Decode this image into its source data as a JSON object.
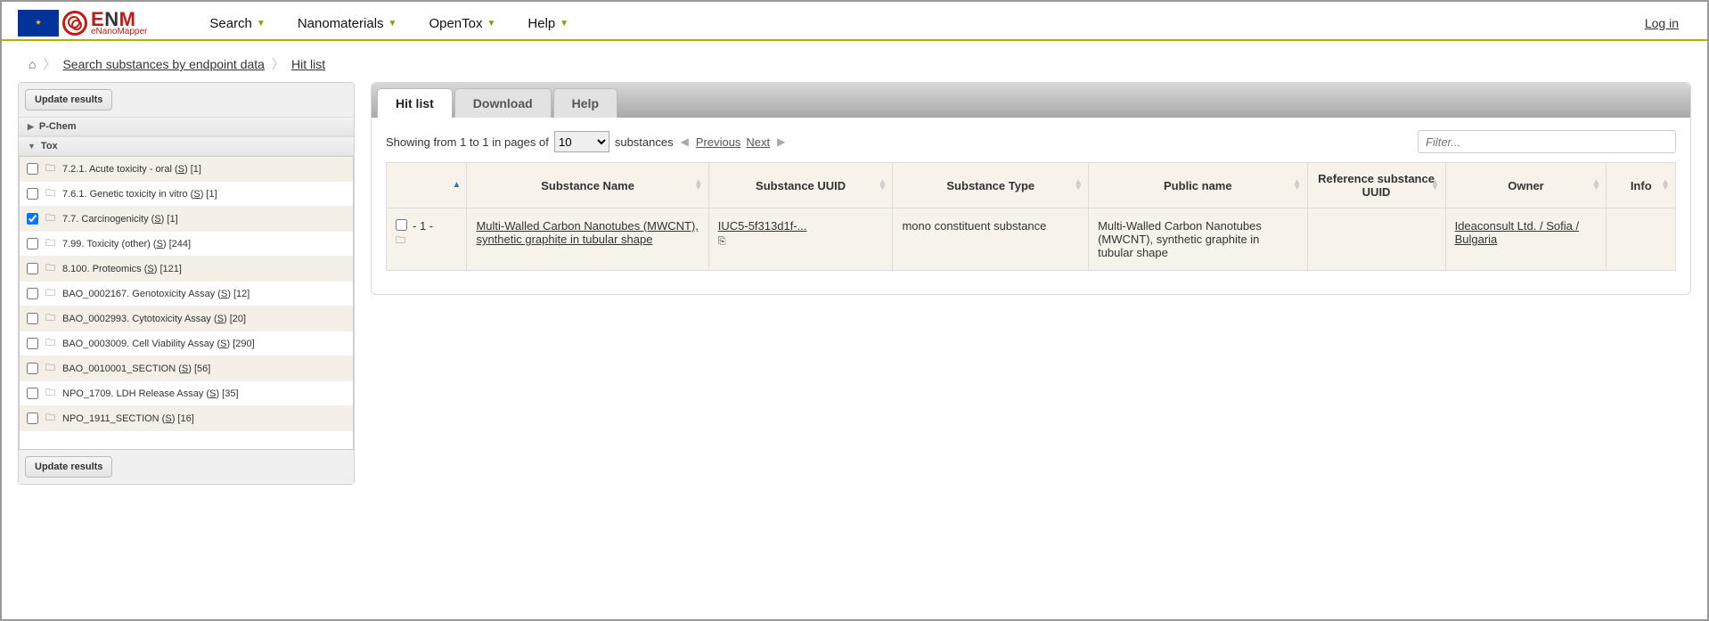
{
  "header": {
    "logo_big": "ENM",
    "logo_small": "eNanoMapper",
    "nav": [
      "Search",
      "Nanomaterials",
      "OpenTox",
      "Help"
    ],
    "login": "Log in"
  },
  "breadcrumb": {
    "items": [
      "Search substances by endpoint data",
      "Hit list"
    ]
  },
  "sidebar": {
    "update_btn": "Update results",
    "sections": {
      "pchem": "P-Chem",
      "tox": "Tox"
    },
    "tox_items": [
      {
        "checked": false,
        "label_pre": "7.2.1. Acute toxicity - oral (",
        "label_s": "S",
        "label_post": ") [1]"
      },
      {
        "checked": false,
        "label_pre": "7.6.1. Genetic toxicity in vitro (",
        "label_s": "S",
        "label_post": ") [1]"
      },
      {
        "checked": true,
        "label_pre": "7.7. Carcinogenicity (",
        "label_s": "S",
        "label_post": ") [1]"
      },
      {
        "checked": false,
        "label_pre": "7.99. Toxicity (other) (",
        "label_s": "S",
        "label_post": ") [244]"
      },
      {
        "checked": false,
        "label_pre": "8.100. Proteomics (",
        "label_s": "S",
        "label_post": ") [121]"
      },
      {
        "checked": false,
        "label_pre": "BAO_0002167. Genotoxicity Assay (",
        "label_s": "S",
        "label_post": ") [12]"
      },
      {
        "checked": false,
        "label_pre": "BAO_0002993. Cytotoxicity Assay (",
        "label_s": "S",
        "label_post": ") [20]"
      },
      {
        "checked": false,
        "label_pre": "BAO_0003009. Cell Viability Assay (",
        "label_s": "S",
        "label_post": ") [290]"
      },
      {
        "checked": false,
        "label_pre": "BAO_0010001_SECTION (",
        "label_s": "S",
        "label_post": ") [56]"
      },
      {
        "checked": false,
        "label_pre": "NPO_1709. LDH Release Assay (",
        "label_s": "S",
        "label_post": ") [35]"
      },
      {
        "checked": false,
        "label_pre": "NPO_1911_SECTION (",
        "label_s": "S",
        "label_post": ") [16]"
      }
    ]
  },
  "tabs": [
    "Hit list",
    "Download",
    "Help"
  ],
  "pager": {
    "showing_pre": "Showing from 1 to 1 in pages of",
    "page_size": "10",
    "showing_post": "substances",
    "prev": "Previous",
    "next": "Next",
    "filter_placeholder": "Filter..."
  },
  "columns": [
    "",
    "Substance Name",
    "Substance UUID",
    "Substance Type",
    "Public name",
    "Reference substance UUID",
    "Owner",
    "Info"
  ],
  "row": {
    "index": "- 1 -",
    "name": "Multi-Walled Carbon Nanotubes (MWCNT), synthetic graphite in tubular shape",
    "uuid": "IUC5-5f313d1f-...",
    "type": "mono constituent substance",
    "public_name": "Multi-Walled Carbon Nanotubes (MWCNT), synthetic graphite in tubular shape",
    "ref_uuid": "",
    "owner": "Ideaconsult Ltd. / Sofia / Bulgaria",
    "info": ""
  }
}
